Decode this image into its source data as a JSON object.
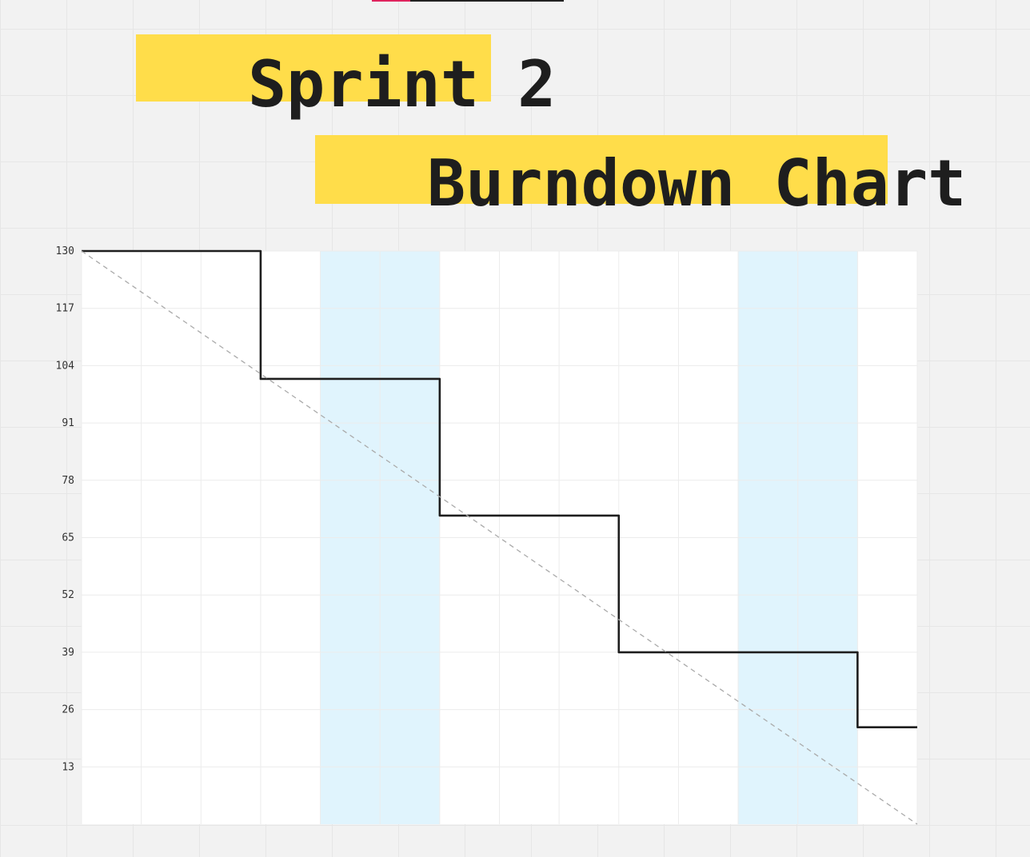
{
  "header": {
    "title_line1": "Sprint 2",
    "title_line2": "Burndown Chart"
  },
  "colors": {
    "title_highlight": "#ffdd4a",
    "weekend_band": "#e0f4fd",
    "plot_background": "#ffffff",
    "actual_line": "#1e1e1e",
    "ideal_line": "#aaaaaa",
    "tab_accent": "#e0245e"
  },
  "chart_data": {
    "type": "line",
    "title": "Sprint 2 Burndown Chart",
    "xlabel": "",
    "ylabel": "",
    "xlim": [
      0,
      14
    ],
    "ylim": [
      0,
      130
    ],
    "yticks": [
      130,
      117,
      104,
      91,
      78,
      65,
      52,
      39,
      26,
      13
    ],
    "grid": true,
    "legend": "none",
    "weekend_bands": [
      [
        4,
        6
      ],
      [
        11,
        13
      ]
    ],
    "series": [
      {
        "style": "solid-step",
        "x": [
          0,
          3,
          3,
          6,
          6,
          9,
          9,
          13,
          13,
          14
        ],
        "values": [
          130,
          130,
          101,
          101,
          70,
          70,
          39,
          39,
          22,
          22
        ]
      },
      {
        "style": "dashed",
        "x": [
          0,
          14
        ],
        "values": [
          130,
          0
        ]
      }
    ]
  }
}
